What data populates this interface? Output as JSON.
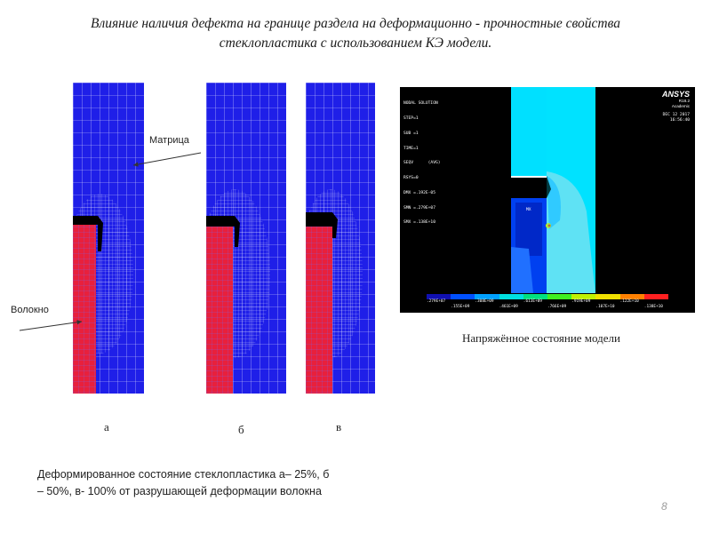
{
  "title_line1": "Влияние наличия дефекта на границе раздела на деформационно - прочностные свойства",
  "title_line2": "стеклопластика с использованием КЭ модели.",
  "labels": {
    "matrix": "Матрица",
    "fiber": "Волокно"
  },
  "subfigures": [
    "а",
    "б",
    "в"
  ],
  "stress_caption": "Напряжённое состояние модели",
  "deform_caption": "Деформированное состояние стеклопластика а– 25%, б – 50%, в- 100% от разрушающей деформации волокна",
  "page_number": "8",
  "ansys": {
    "lines": [
      "NODAL SOLUTION",
      "STEP=1",
      "SUB =1",
      "TIME=1",
      "SEQV      (AVG)",
      "RSYS=0",
      "DMX =.192E-05",
      "SMN =.279E+07",
      "SMX =.138E+10"
    ],
    "brand": "ANSYS",
    "version": "R18.2",
    "edition": "Academic",
    "date": "DEC 12 2017",
    "time": "16:56:40",
    "mx_label": "MX",
    "legend_top": [
      ".279E+07",
      ".308E+09",
      ".613E+09",
      ".919E+09",
      ".122E+10"
    ],
    "legend_bottom": [
      ".155E+09",
      ".461E+09",
      ".766E+09",
      ".107E+10",
      ".138E+10"
    ],
    "legend_colors": [
      "#1010b0",
      "#0050ff",
      "#00a0ff",
      "#00e0e0",
      "#00e080",
      "#40f020",
      "#c0f000",
      "#f0e000",
      "#ff8000",
      "#ff2020"
    ]
  }
}
